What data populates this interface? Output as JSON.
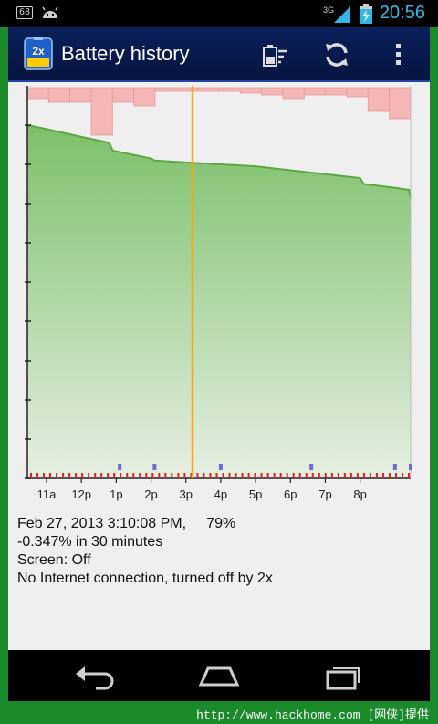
{
  "status_bar": {
    "notification_badge": "68",
    "network_type": "3G",
    "time": "20:56"
  },
  "action_bar": {
    "app_icon_label": "2x",
    "title": "Battery history"
  },
  "chart_data": {
    "type": "area",
    "title": "",
    "x_ticks": [
      "11a",
      "12p",
      "1p",
      "2p",
      "3p",
      "4p",
      "5p",
      "6p",
      "7p",
      "8p"
    ],
    "xlabel": "",
    "ylabel": "",
    "ylim": [
      0,
      100
    ],
    "battery_series": {
      "name": "",
      "x_hours": [
        10.45,
        11.0,
        12.0,
        12.8,
        12.9,
        14.0,
        14.1,
        15.0,
        16.0,
        17.0,
        18.0,
        19.0,
        20.0,
        20.1,
        21.0,
        21.4,
        21.45
      ],
      "values": [
        90,
        89,
        87,
        85.5,
        83.5,
        81.5,
        81,
        80.5,
        80,
        79.5,
        78.5,
        77.5,
        76.5,
        75,
        74,
        73.5,
        71.5
      ]
    },
    "current_marker": {
      "x_hours": 15.19,
      "percent": 79
    },
    "colors": {
      "area_fill_top": "#7cc06a",
      "area_fill_bottom": "#e6efe2",
      "area_line": "#5aa840",
      "discharge_bars": "#f4b6b6",
      "marker": "#f5a623",
      "screen_events": "#e02020",
      "wake_events": "#6b6bd6"
    }
  },
  "info": {
    "line1": "Feb 27, 2013 3:10:08 PM,     79%",
    "line2": "-0.347% in 30 minutes",
    "line3": "Screen: Off",
    "line4": "No Internet connection, turned off by 2x"
  },
  "footer": {
    "url": "http://www.hackhome.com [网侠]提供"
  }
}
